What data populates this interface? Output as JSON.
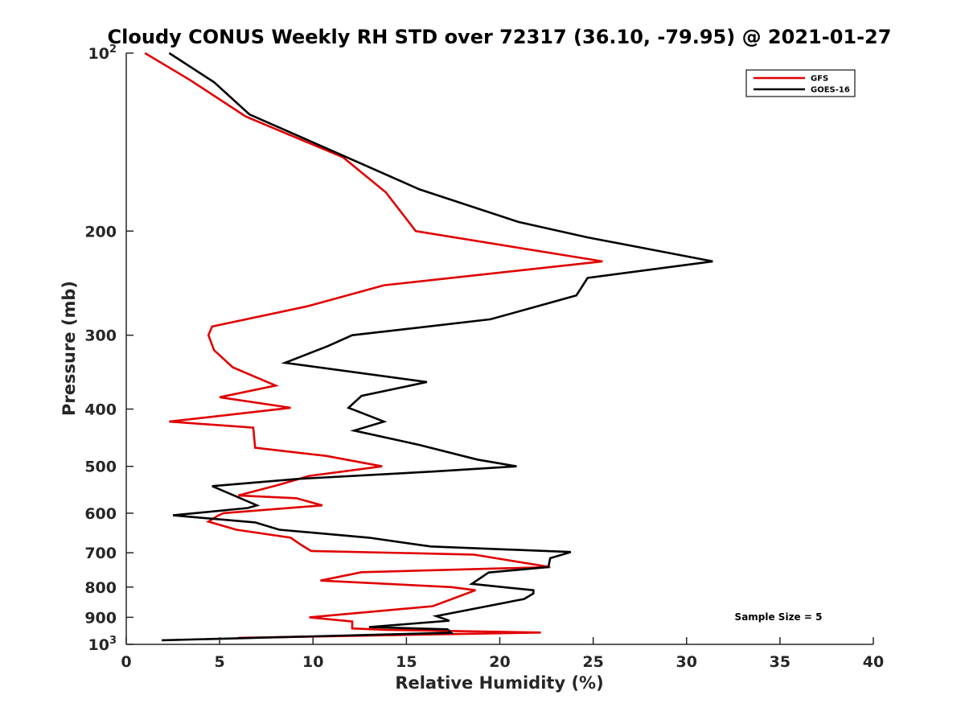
{
  "chart_data": {
    "type": "line",
    "title": "Cloudy CONUS Weekly RH STD over 72317 (36.10, -79.95) @ 2021-01-27",
    "xlabel": "Relative Humidity (%)",
    "ylabel": "Pressure (mb)",
    "xlim": [
      0,
      40
    ],
    "ylim": [
      100,
      1000
    ],
    "yscale": "log",
    "y_reversed": true,
    "grid": false,
    "legend_position": "top-right",
    "x_ticks": [
      "0",
      "5",
      "10",
      "15",
      "20",
      "25",
      "30",
      "35",
      "40"
    ],
    "y_ticks": [
      {
        "value": 100,
        "base": "10",
        "sup": "2"
      },
      {
        "value": 200,
        "label": "200"
      },
      {
        "value": 300,
        "label": "300"
      },
      {
        "value": 400,
        "label": "400"
      },
      {
        "value": 500,
        "label": "500"
      },
      {
        "value": 600,
        "label": "600"
      },
      {
        "value": 700,
        "label": "700"
      },
      {
        "value": 800,
        "label": "800"
      },
      {
        "value": 900,
        "label": "900"
      },
      {
        "value": 1000,
        "base": "10",
        "sup": "3"
      }
    ],
    "annotation": "Sample Size = 5",
    "series": [
      {
        "name": "GFS",
        "color": "#e00000",
        "points": [
          [
            1.0,
            100
          ],
          [
            3.4,
            111
          ],
          [
            6.4,
            128
          ],
          [
            11.6,
            150
          ],
          [
            13.9,
            172
          ],
          [
            15.5,
            200
          ],
          [
            25.5,
            225
          ],
          [
            13.8,
            247
          ],
          [
            9.7,
            268
          ],
          [
            4.6,
            290
          ],
          [
            4.4,
            300
          ],
          [
            4.7,
            318
          ],
          [
            5.7,
            340
          ],
          [
            8.0,
            365
          ],
          [
            5.0,
            382
          ],
          [
            8.8,
            398
          ],
          [
            2.3,
            420
          ],
          [
            6.8,
            430
          ],
          [
            6.9,
            465
          ],
          [
            10.7,
            480
          ],
          [
            13.7,
            500
          ],
          [
            9.8,
            519
          ],
          [
            8.1,
            538
          ],
          [
            6.0,
            560
          ],
          [
            9.1,
            566
          ],
          [
            10.5,
            582
          ],
          [
            5.2,
            600
          ],
          [
            4.9,
            606
          ],
          [
            4.4,
            620
          ],
          [
            5.9,
            640
          ],
          [
            8.8,
            660
          ],
          [
            9.4,
            680
          ],
          [
            9.9,
            695
          ],
          [
            18.6,
            705
          ],
          [
            22.7,
            740
          ],
          [
            12.6,
            755
          ],
          [
            10.4,
            780
          ],
          [
            17.4,
            800
          ],
          [
            18.7,
            810
          ],
          [
            17.8,
            830
          ],
          [
            16.4,
            862
          ],
          [
            9.8,
            900
          ],
          [
            12.1,
            915
          ],
          [
            12.1,
            940
          ],
          [
            13.9,
            945
          ],
          [
            22.2,
            955
          ],
          [
            6.0,
            975
          ]
        ]
      },
      {
        "name": "GOES-16",
        "color": "#000000",
        "points": [
          [
            2.3,
            100
          ],
          [
            4.7,
            112
          ],
          [
            6.6,
            127
          ],
          [
            11.8,
            150
          ],
          [
            15.7,
            170
          ],
          [
            21.0,
            193
          ],
          [
            24.7,
            205
          ],
          [
            31.4,
            225
          ],
          [
            24.7,
            240
          ],
          [
            24.1,
            257
          ],
          [
            19.5,
            282
          ],
          [
            12.1,
            300
          ],
          [
            10.8,
            313
          ],
          [
            8.5,
            334
          ],
          [
            16.1,
            360
          ],
          [
            12.6,
            380
          ],
          [
            11.9,
            398
          ],
          [
            13.8,
            420
          ],
          [
            12.2,
            435
          ],
          [
            15.7,
            460
          ],
          [
            18.8,
            487
          ],
          [
            20.9,
            500
          ],
          [
            16.5,
            510
          ],
          [
            9.2,
            525
          ],
          [
            4.6,
            540
          ],
          [
            7.0,
            582
          ],
          [
            6.5,
            588
          ],
          [
            2.5,
            605
          ],
          [
            6.9,
            622
          ],
          [
            8.2,
            640
          ],
          [
            13.0,
            660
          ],
          [
            16.3,
            683
          ],
          [
            23.8,
            698
          ],
          [
            22.7,
            715
          ],
          [
            22.6,
            740
          ],
          [
            19.4,
            756
          ],
          [
            18.5,
            790
          ],
          [
            21.8,
            810
          ],
          [
            21.8,
            820
          ],
          [
            21.3,
            838
          ],
          [
            16.6,
            896
          ],
          [
            17.3,
            912
          ],
          [
            13.0,
            935
          ],
          [
            17.2,
            943
          ],
          [
            17.4,
            956
          ],
          [
            1.9,
            984
          ]
        ]
      }
    ]
  }
}
